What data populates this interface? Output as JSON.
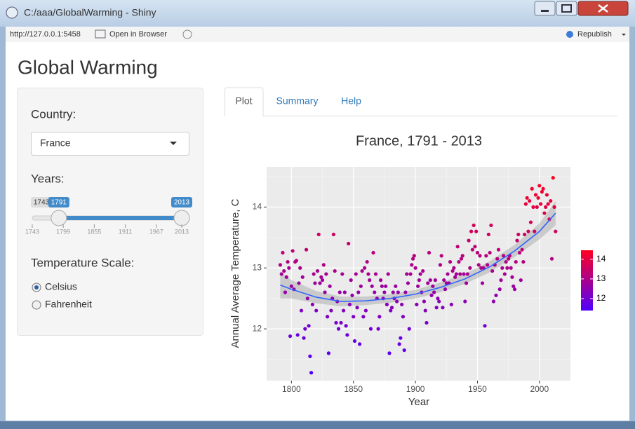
{
  "window": {
    "title": "C:/aaa/GlobalWarming - Shiny",
    "address": "http://127.0.0.1:5458",
    "open_in_browser": "Open in Browser",
    "republish": "Republish"
  },
  "app": {
    "title": "Global Warming",
    "country": {
      "label": "Country:",
      "selected": "France"
    },
    "years": {
      "label": "Years:",
      "min": 1743,
      "max": 2013,
      "from": 1791,
      "to": 2013,
      "ticks": [
        1743,
        1799,
        1855,
        1911,
        1967,
        2013
      ]
    },
    "temperature_scale": {
      "label": "Temperature Scale:",
      "options": [
        "Celsius",
        "Fahrenheit"
      ],
      "selected": 0
    },
    "tabs": [
      "Plot",
      "Summary",
      "Help"
    ],
    "active_tab": 0
  },
  "chart_data": {
    "type": "scatter",
    "title": "France, 1791 - 2013",
    "xlabel": "Year",
    "ylabel": "Annual Average Temperature, C",
    "xlim": [
      1780,
      2025
    ],
    "ylim": [
      11.15,
      14.66
    ],
    "xticks": [
      1800,
      1850,
      1900,
      1950,
      2000
    ],
    "yticks": [
      12,
      13,
      14
    ],
    "grid": true,
    "x": [
      1791,
      1792,
      1793,
      1794,
      1795,
      1796,
      1797,
      1798,
      1799,
      1800,
      1801,
      1802,
      1803,
      1804,
      1805,
      1806,
      1807,
      1808,
      1809,
      1810,
      1811,
      1812,
      1813,
      1814,
      1815,
      1816,
      1817,
      1818,
      1819,
      1820,
      1821,
      1822,
      1823,
      1824,
      1825,
      1826,
      1827,
      1828,
      1829,
      1830,
      1831,
      1832,
      1833,
      1834,
      1835,
      1836,
      1837,
      1838,
      1839,
      1840,
      1841,
      1842,
      1843,
      1844,
      1845,
      1846,
      1847,
      1848,
      1849,
      1850,
      1851,
      1852,
      1853,
      1854,
      1855,
      1856,
      1857,
      1858,
      1859,
      1860,
      1861,
      1862,
      1863,
      1864,
      1865,
      1866,
      1867,
      1868,
      1869,
      1870,
      1871,
      1872,
      1873,
      1874,
      1875,
      1876,
      1877,
      1878,
      1879,
      1880,
      1881,
      1882,
      1883,
      1884,
      1885,
      1886,
      1887,
      1888,
      1889,
      1890,
      1891,
      1892,
      1893,
      1894,
      1895,
      1896,
      1897,
      1898,
      1899,
      1900,
      1901,
      1902,
      1903,
      1904,
      1905,
      1906,
      1907,
      1908,
      1909,
      1910,
      1911,
      1912,
      1913,
      1914,
      1915,
      1916,
      1917,
      1918,
      1919,
      1920,
      1921,
      1922,
      1923,
      1924,
      1925,
      1926,
      1927,
      1928,
      1929,
      1930,
      1931,
      1932,
      1933,
      1934,
      1935,
      1936,
      1937,
      1938,
      1939,
      1940,
      1941,
      1942,
      1943,
      1944,
      1945,
      1946,
      1947,
      1948,
      1949,
      1950,
      1951,
      1952,
      1953,
      1954,
      1955,
      1956,
      1957,
      1958,
      1959,
      1960,
      1961,
      1962,
      1963,
      1964,
      1965,
      1966,
      1967,
      1968,
      1969,
      1970,
      1971,
      1972,
      1973,
      1974,
      1975,
      1976,
      1977,
      1978,
      1979,
      1980,
      1981,
      1982,
      1983,
      1984,
      1985,
      1986,
      1987,
      1988,
      1989,
      1990,
      1991,
      1992,
      1993,
      1994,
      1995,
      1996,
      1997,
      1998,
      1999,
      2000,
      2001,
      2002,
      2003,
      2004,
      2005,
      2006,
      2007,
      2008,
      2009,
      2010,
      2011,
      2012,
      2013
    ],
    "values": [
      13.05,
      12.9,
      13.25,
      12.95,
      12.6,
      12.85,
      13.1,
      13.0,
      11.88,
      12.7,
      13.28,
      12.65,
      13.1,
      13.12,
      11.9,
      12.75,
      13.0,
      12.3,
      12.85,
      11.85,
      12.0,
      13.3,
      12.5,
      12.05,
      11.55,
      11.28,
      12.4,
      12.9,
      12.75,
      12.3,
      12.95,
      13.55,
      12.75,
      12.85,
      12.8,
      13.05,
      12.6,
      12.9,
      12.2,
      11.6,
      12.7,
      12.3,
      12.5,
      13.55,
      12.95,
      12.1,
      12.45,
      12.0,
      12.6,
      12.1,
      12.9,
      12.3,
      12.6,
      12.05,
      11.9,
      13.4,
      12.4,
      12.8,
      12.55,
      12.2,
      11.8,
      12.9,
      12.35,
      12.6,
      11.75,
      12.7,
      12.95,
      12.2,
      13.0,
      12.3,
      13.1,
      12.9,
      12.8,
      12.0,
      12.7,
      13.25,
      12.6,
      12.9,
      12.5,
      12.0,
      12.2,
      12.8,
      12.7,
      12.5,
      12.6,
      12.7,
      12.4,
      12.9,
      11.6,
      12.3,
      12.35,
      12.6,
      12.5,
      12.7,
      12.45,
      12.6,
      11.75,
      11.85,
      12.4,
      12.2,
      11.65,
      12.6,
      12.9,
      12.75,
      12.0,
      12.9,
      13.05,
      13.15,
      13.2,
      13.0,
      12.4,
      12.7,
      12.8,
      12.9,
      12.6,
      12.95,
      12.45,
      12.3,
      12.1,
      12.75,
      13.25,
      12.8,
      12.55,
      12.7,
      12.6,
      12.8,
      12.35,
      12.5,
      12.45,
      13.05,
      13.2,
      12.35,
      12.8,
      12.65,
      12.75,
      12.9,
      12.75,
      13.1,
      12.4,
      12.95,
      13.0,
      12.85,
      12.9,
      13.35,
      13.1,
      12.9,
      13.15,
      13.2,
      12.9,
      12.45,
      12.75,
      12.9,
      13.45,
      13.0,
      13.6,
      13.3,
      13.7,
      13.35,
      13.6,
      13.25,
      13.05,
      13.2,
      13.0,
      12.75,
      13.0,
      12.05,
      13.2,
      13.05,
      13.55,
      13.25,
      13.7,
      12.95,
      12.45,
      13.05,
      12.55,
      13.15,
      13.3,
      12.65,
      12.8,
      13.0,
      13.2,
      12.9,
      13.1,
      13.0,
      13.15,
      13.2,
      13.0,
      12.85,
      12.7,
      12.65,
      13.1,
      13.45,
      13.55,
      13.25,
      12.8,
      13.3,
      13.1,
      13.55,
      14.05,
      14.15,
      13.6,
      14.1,
      13.75,
      14.3,
      14.0,
      13.6,
      14.2,
      14.0,
      14.15,
      14.35,
      14.05,
      14.25,
      14.3,
      13.9,
      14.0,
      14.2,
      14.05,
      13.8,
      14.1,
      13.15,
      14.48,
      14.0,
      13.6
    ],
    "color_scale": {
      "low": "#5000ff",
      "high": "#ff0020",
      "lim": [
        11.39,
        14.46
      ],
      "ticks": [
        12,
        13,
        14
      ]
    },
    "trend": {
      "color": "#3366ff",
      "x": [
        1791,
        1800,
        1820,
        1840,
        1860,
        1880,
        1900,
        1920,
        1940,
        1960,
        1980,
        2000,
        2013
      ],
      "values": [
        12.72,
        12.65,
        12.52,
        12.45,
        12.46,
        12.5,
        12.57,
        12.68,
        12.82,
        13.02,
        13.28,
        13.6,
        13.9
      ],
      "lower": [
        12.5,
        12.5,
        12.42,
        12.37,
        12.39,
        12.43,
        12.5,
        12.6,
        12.74,
        12.93,
        13.18,
        13.47,
        13.7
      ],
      "upper": [
        12.94,
        12.8,
        12.62,
        12.53,
        12.53,
        12.57,
        12.64,
        12.76,
        12.9,
        13.11,
        13.38,
        13.73,
        14.1
      ]
    }
  }
}
